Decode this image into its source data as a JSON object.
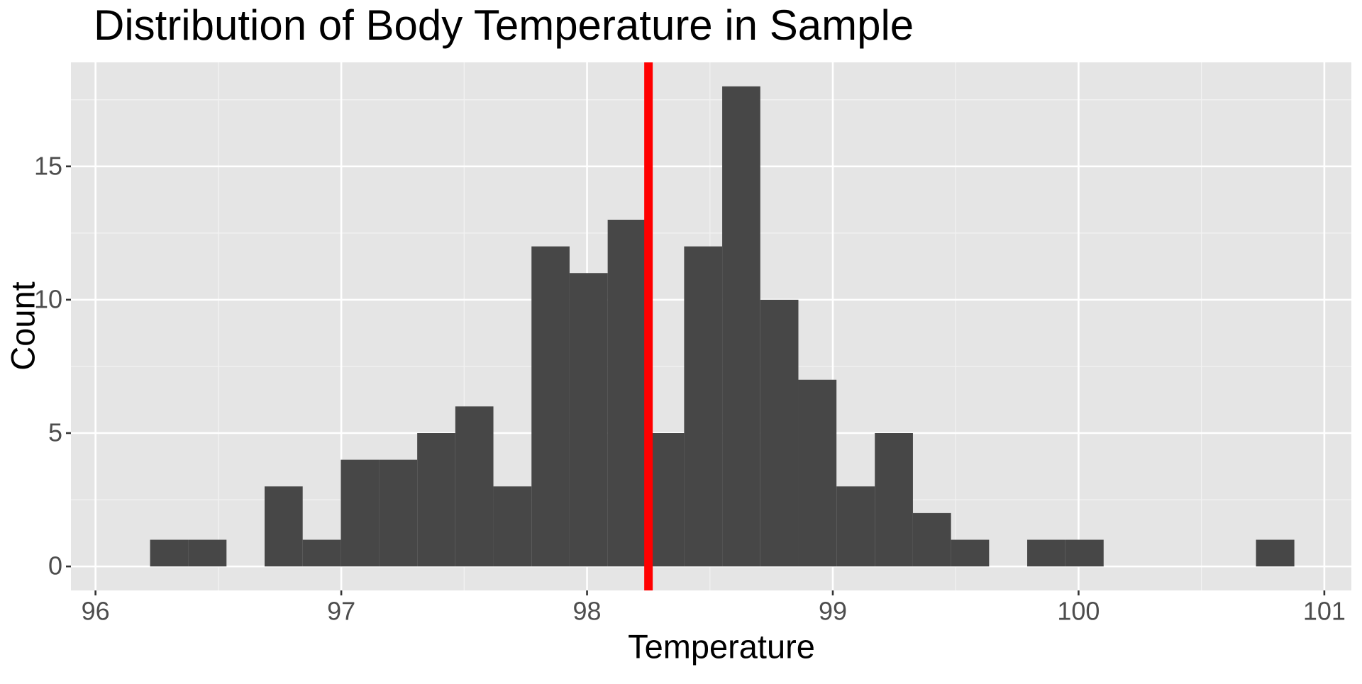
{
  "chart_data": {
    "type": "histogram",
    "title": "Distribution of Body Temperature in Sample",
    "x_label": "Temperature",
    "y_label": "Count",
    "bins": [
      96.222,
      96.378,
      96.533,
      96.688,
      96.843,
      96.998,
      97.153,
      97.309,
      97.464,
      97.619,
      97.774,
      97.929,
      98.084,
      98.24,
      98.395,
      98.55,
      98.705,
      98.86,
      99.015,
      99.171,
      99.326,
      99.481,
      99.636,
      99.791,
      99.946,
      100.102,
      100.257,
      100.412,
      100.567,
      100.722,
      100.878
    ],
    "values": [
      1,
      1,
      0,
      3,
      1,
      4,
      4,
      5,
      6,
      3,
      12,
      11,
      13,
      5,
      12,
      18,
      10,
      7,
      3,
      5,
      2,
      1,
      0,
      1,
      1,
      0,
      0,
      0,
      0,
      1
    ],
    "color": "#474747",
    "vline": {
      "value": 98.25,
      "color": "#ff0000"
    },
    "xlim": [
      95.9,
      101.11
    ],
    "xticks": [
      96,
      97,
      98,
      99,
      100,
      101
    ],
    "xminor": [
      96.5,
      97.5,
      98.5,
      99.5,
      100.5
    ],
    "ylim": [
      -0.9,
      18.9
    ],
    "yticks": [
      0,
      5,
      10,
      15
    ],
    "yminor": [
      2.5,
      7.5,
      12.5,
      17.5
    ],
    "grid": true
  }
}
